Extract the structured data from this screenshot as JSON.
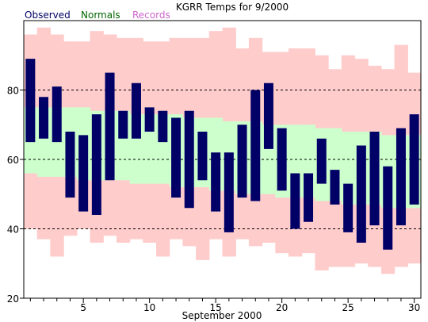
{
  "chart_data": {
    "type": "bar",
    "title": "KGRR Temps for 9/2000",
    "xlabel": "September 2000",
    "ylabel": "",
    "xlim": [
      1,
      30
    ],
    "ylim": [
      20,
      100
    ],
    "x_ticks": [
      5,
      10,
      15,
      20,
      25,
      30
    ],
    "y_ticks": [
      20,
      40,
      60,
      80
    ],
    "grid": "dashed horizontal lines at 40, 60, 80",
    "legend": [
      {
        "name": "Observed",
        "color": "#000066"
      },
      {
        "name": "Normals",
        "color": "#006600"
      },
      {
        "name": "Records",
        "color": "#cc66cc"
      }
    ],
    "legend_position": "top-left",
    "days": [
      1,
      2,
      3,
      4,
      5,
      6,
      7,
      8,
      9,
      10,
      11,
      12,
      13,
      14,
      15,
      16,
      17,
      18,
      19,
      20,
      21,
      22,
      23,
      24,
      25,
      26,
      27,
      28,
      29,
      30
    ],
    "series": [
      {
        "name": "Records",
        "color": "#ffcccc",
        "highs": [
          96,
          98,
          96,
          94,
          94,
          97,
          96,
          95,
          95,
          94,
          94,
          95,
          95,
          95,
          97,
          98,
          92,
          95,
          91,
          91,
          92,
          92,
          90,
          86,
          90,
          89,
          87,
          86,
          93,
          85
        ],
        "lows": [
          40,
          37,
          32,
          38,
          40,
          36,
          38,
          36,
          37,
          36,
          32,
          37,
          35,
          31,
          37,
          32,
          37,
          35,
          36,
          33,
          32,
          33,
          28,
          29,
          29,
          30,
          29,
          27,
          29,
          30
        ]
      },
      {
        "name": "Normals",
        "color": "#ccffcc",
        "highs": [
          75,
          75,
          75,
          75,
          75,
          74,
          74,
          74,
          73,
          73,
          73,
          73,
          72,
          72,
          72,
          71,
          71,
          71,
          70,
          70,
          70,
          70,
          69,
          69,
          68,
          68,
          68,
          67,
          67,
          67
        ],
        "lows": [
          56,
          55,
          55,
          55,
          54,
          54,
          54,
          54,
          53,
          53,
          53,
          52,
          52,
          52,
          51,
          51,
          50,
          50,
          50,
          49,
          49,
          49,
          48,
          48,
          47,
          47,
          47,
          46,
          46,
          46
        ]
      },
      {
        "name": "Observed",
        "color": "#000066",
        "highs": [
          89,
          78,
          81,
          68,
          67,
          73,
          85,
          74,
          82,
          75,
          74,
          72,
          74,
          68,
          62,
          62,
          70,
          80,
          82,
          69,
          56,
          56,
          66,
          57,
          53,
          64,
          68,
          58,
          69,
          73
        ],
        "lows": [
          65,
          66,
          65,
          49,
          45,
          44,
          54,
          66,
          66,
          68,
          65,
          49,
          46,
          54,
          45,
          39,
          49,
          48,
          63,
          51,
          40,
          42,
          53,
          47,
          39,
          36,
          41,
          34,
          41,
          47
        ]
      }
    ]
  }
}
